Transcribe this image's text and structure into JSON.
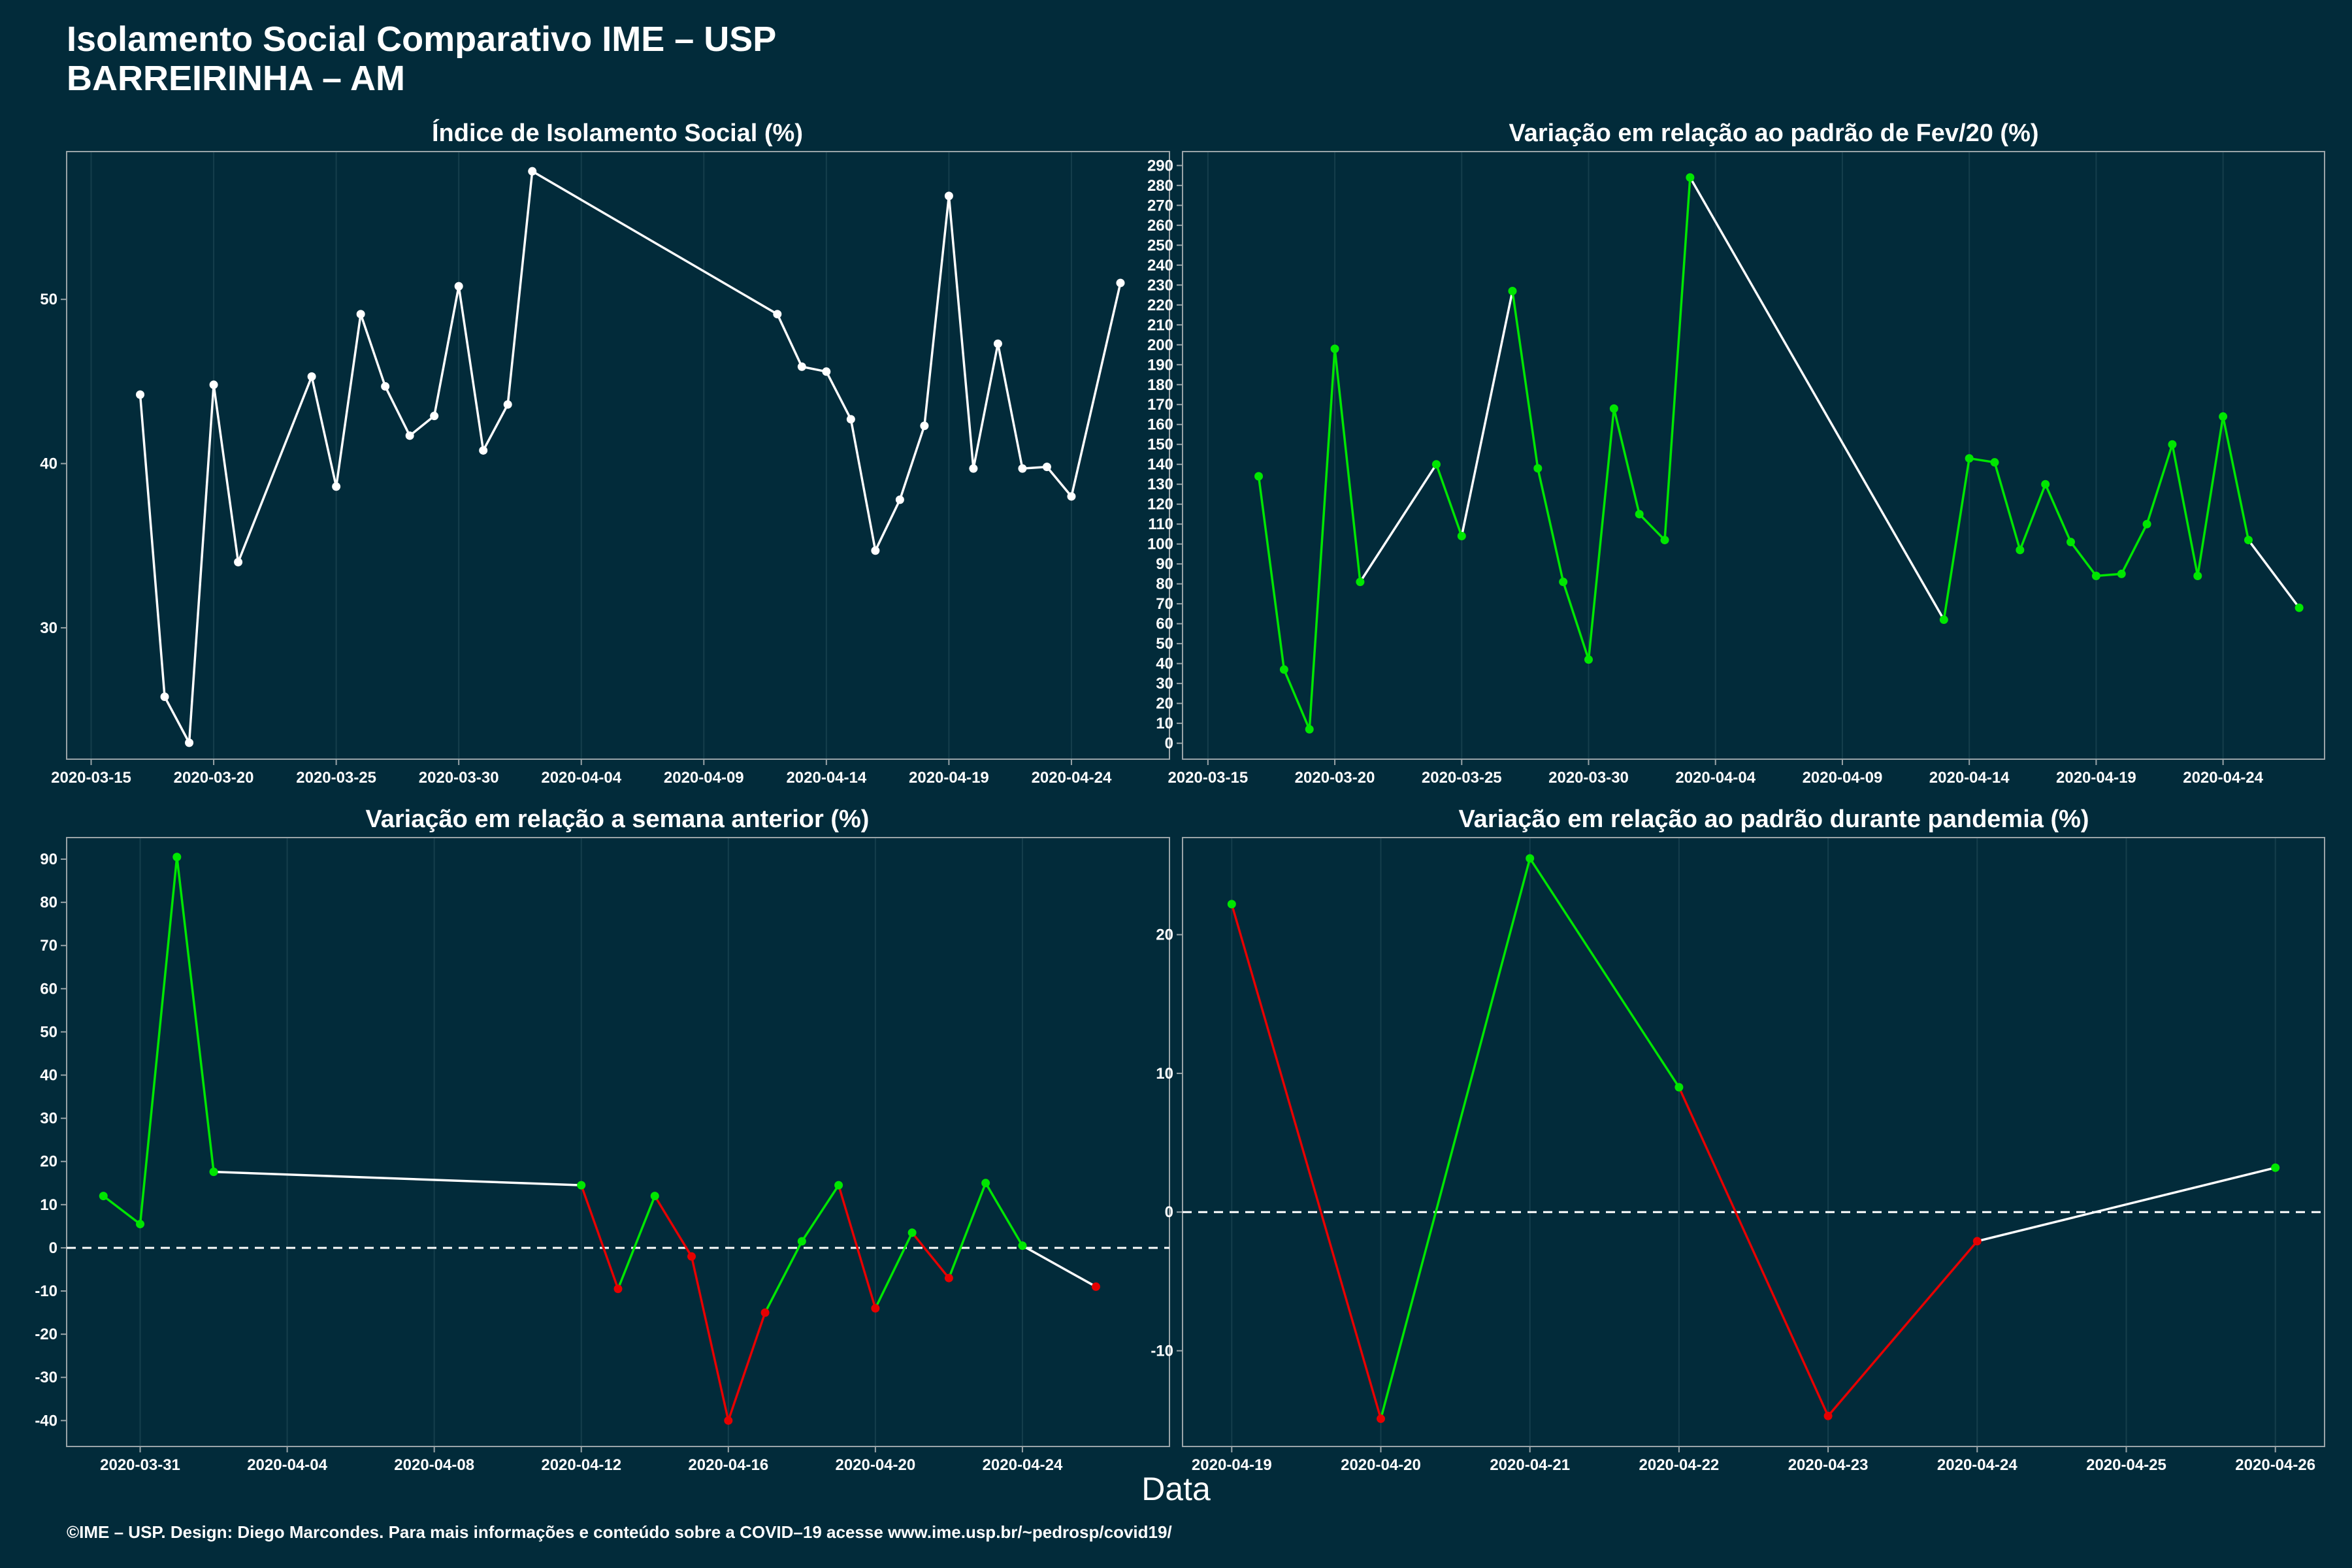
{
  "page": {
    "title_line1": "Isolamento Social Comparativo IME – USP",
    "title_line2": "BARREIRINHA – AM",
    "xlabel": "Data",
    "footer": "©IME – USP. Design: Diego Marcondes. Para mais informações e conteúdo sobre a COVID–19 acesse www.ime.usp.br/~pedrosp/covid19/"
  },
  "colors": {
    "background": "#022b3a",
    "white": "#ffffff",
    "green": "#00e600",
    "red": "#e60000",
    "panel_border": "#9aa4a8",
    "grid": "#153e4c"
  },
  "chart_data": [
    {
      "id": "isolamento",
      "type": "line",
      "title": "Índice de Isolamento Social (%)",
      "xlabel": "",
      "ylabel": "",
      "xlim": [
        "2020-03-14",
        "2020-04-28"
      ],
      "ylim": [
        22,
        59
      ],
      "x_ticks": [
        "2020-03-15",
        "2020-03-20",
        "2020-03-25",
        "2020-03-30",
        "2020-04-04",
        "2020-04-09",
        "2020-04-14",
        "2020-04-19",
        "2020-04-24"
      ],
      "y_ticks": [
        30,
        40,
        50
      ],
      "points": [
        {
          "x": "2020-03-17",
          "y": 44.2,
          "color": "white"
        },
        {
          "x": "2020-03-18",
          "y": 25.8,
          "color": "white"
        },
        {
          "x": "2020-03-19",
          "y": 23.0,
          "color": "white"
        },
        {
          "x": "2020-03-20",
          "y": 44.8,
          "color": "white"
        },
        {
          "x": "2020-03-21",
          "y": 34.0,
          "color": "white"
        },
        {
          "x": "2020-03-24",
          "y": 45.3,
          "color": "white"
        },
        {
          "x": "2020-03-25",
          "y": 38.6,
          "color": "white"
        },
        {
          "x": "2020-03-26",
          "y": 49.1,
          "color": "white"
        },
        {
          "x": "2020-03-27",
          "y": 44.7,
          "color": "white"
        },
        {
          "x": "2020-03-28",
          "y": 41.7,
          "color": "white"
        },
        {
          "x": "2020-03-29",
          "y": 42.9,
          "color": "white"
        },
        {
          "x": "2020-03-30",
          "y": 50.8,
          "color": "white"
        },
        {
          "x": "2020-03-31",
          "y": 40.8,
          "color": "white"
        },
        {
          "x": "2020-04-01",
          "y": 43.6,
          "color": "white"
        },
        {
          "x": "2020-04-02",
          "y": 57.8,
          "color": "white"
        },
        {
          "x": "2020-04-12",
          "y": 49.1,
          "color": "white"
        },
        {
          "x": "2020-04-13",
          "y": 45.9,
          "color": "white"
        },
        {
          "x": "2020-04-14",
          "y": 45.6,
          "color": "white"
        },
        {
          "x": "2020-04-15",
          "y": 42.7,
          "color": "white"
        },
        {
          "x": "2020-04-16",
          "y": 34.7,
          "color": "white"
        },
        {
          "x": "2020-04-17",
          "y": 37.8,
          "color": "white"
        },
        {
          "x": "2020-04-18",
          "y": 42.3,
          "color": "white"
        },
        {
          "x": "2020-04-19",
          "y": 56.3,
          "color": "white"
        },
        {
          "x": "2020-04-20",
          "y": 39.7,
          "color": "white"
        },
        {
          "x": "2020-04-21",
          "y": 47.3,
          "color": "white"
        },
        {
          "x": "2020-04-22",
          "y": 39.7,
          "color": "white"
        },
        {
          "x": "2020-04-23",
          "y": 39.8,
          "color": "white"
        },
        {
          "x": "2020-04-24",
          "y": 38.0,
          "color": "white"
        },
        {
          "x": "2020-04-26",
          "y": 51.0,
          "color": "white"
        }
      ]
    },
    {
      "id": "fev20",
      "type": "line",
      "title": "Variação em relação ao padrão de Fev/20 (%)",
      "xlabel": "",
      "ylabel": "",
      "xlim": [
        "2020-03-14",
        "2020-04-28"
      ],
      "ylim": [
        -8,
        297
      ],
      "x_ticks": [
        "2020-03-15",
        "2020-03-20",
        "2020-03-25",
        "2020-03-30",
        "2020-04-04",
        "2020-04-09",
        "2020-04-14",
        "2020-04-19",
        "2020-04-24"
      ],
      "y_ticks": [
        0,
        10,
        20,
        30,
        40,
        50,
        60,
        70,
        80,
        90,
        100,
        110,
        120,
        130,
        140,
        150,
        160,
        170,
        180,
        190,
        200,
        210,
        220,
        230,
        240,
        250,
        260,
        270,
        280,
        290
      ],
      "points": [
        {
          "x": "2020-03-17",
          "y": 134,
          "color": "green"
        },
        {
          "x": "2020-03-18",
          "y": 37,
          "color": "green"
        },
        {
          "x": "2020-03-19",
          "y": 7,
          "color": "green"
        },
        {
          "x": "2020-03-20",
          "y": 198,
          "color": "green"
        },
        {
          "x": "2020-03-21",
          "y": 81,
          "color": "green"
        },
        {
          "x": "2020-03-24",
          "y": 140,
          "color": "green"
        },
        {
          "x": "2020-03-25",
          "y": 104,
          "color": "green"
        },
        {
          "x": "2020-03-27",
          "y": 227,
          "color": "green"
        },
        {
          "x": "2020-03-28",
          "y": 138,
          "color": "green"
        },
        {
          "x": "2020-03-29",
          "y": 81,
          "color": "green"
        },
        {
          "x": "2020-03-30",
          "y": 42,
          "color": "green"
        },
        {
          "x": "2020-03-31",
          "y": 168,
          "color": "green"
        },
        {
          "x": "2020-04-01",
          "y": 115,
          "color": "green"
        },
        {
          "x": "2020-04-02",
          "y": 102,
          "color": "green"
        },
        {
          "x": "2020-04-03",
          "y": 284,
          "color": "green"
        },
        {
          "x": "2020-04-13",
          "y": 62,
          "color": "green"
        },
        {
          "x": "2020-04-14",
          "y": 143,
          "color": "green"
        },
        {
          "x": "2020-04-15",
          "y": 141,
          "color": "green"
        },
        {
          "x": "2020-04-16",
          "y": 97,
          "color": "green"
        },
        {
          "x": "2020-04-17",
          "y": 130,
          "color": "green"
        },
        {
          "x": "2020-04-18",
          "y": 101,
          "color": "green"
        },
        {
          "x": "2020-04-19",
          "y": 84,
          "color": "green"
        },
        {
          "x": "2020-04-20",
          "y": 85,
          "color": "green"
        },
        {
          "x": "2020-04-21",
          "y": 110,
          "color": "green"
        },
        {
          "x": "2020-04-22",
          "y": 150,
          "color": "green"
        },
        {
          "x": "2020-04-23",
          "y": 84,
          "color": "green"
        },
        {
          "x": "2020-04-24",
          "y": 164,
          "color": "green"
        },
        {
          "x": "2020-04-25",
          "y": 102,
          "color": "green"
        },
        {
          "x": "2020-04-27",
          "y": 68,
          "color": "green"
        }
      ]
    },
    {
      "id": "semana",
      "type": "line",
      "title": "Variação em relação a semana anterior (%)",
      "xlabel": "",
      "ylabel": "",
      "xlim": [
        "2020-03-29",
        "2020-04-28"
      ],
      "ylim": [
        -46,
        95
      ],
      "x_ticks": [
        "2020-03-31",
        "2020-04-04",
        "2020-04-08",
        "2020-04-12",
        "2020-04-16",
        "2020-04-20",
        "2020-04-24"
      ],
      "y_ticks": [
        -40,
        -30,
        -20,
        -10,
        0,
        10,
        20,
        30,
        40,
        50,
        60,
        70,
        80,
        90
      ],
      "zero_line": true,
      "points": [
        {
          "x": "2020-03-30",
          "y": 12,
          "color": "green"
        },
        {
          "x": "2020-03-31",
          "y": 5.5,
          "color": "green"
        },
        {
          "x": "2020-04-01",
          "y": 90.5,
          "color": "green"
        },
        {
          "x": "2020-04-02",
          "y": 17.6,
          "color": "green"
        },
        {
          "x": "2020-04-12",
          "y": 14.5,
          "color": "green"
        },
        {
          "x": "2020-04-13",
          "y": -9.5,
          "color": "red"
        },
        {
          "x": "2020-04-14",
          "y": 12,
          "color": "green"
        },
        {
          "x": "2020-04-15",
          "y": -2,
          "color": "red"
        },
        {
          "x": "2020-04-16",
          "y": -40,
          "color": "red"
        },
        {
          "x": "2020-04-17",
          "y": -15,
          "color": "red"
        },
        {
          "x": "2020-04-18",
          "y": 1.5,
          "color": "green"
        },
        {
          "x": "2020-04-19",
          "y": 14.5,
          "color": "green"
        },
        {
          "x": "2020-04-20",
          "y": -14,
          "color": "red"
        },
        {
          "x": "2020-04-21",
          "y": 3.5,
          "color": "green"
        },
        {
          "x": "2020-04-22",
          "y": -7,
          "color": "red"
        },
        {
          "x": "2020-04-23",
          "y": 15,
          "color": "green"
        },
        {
          "x": "2020-04-24",
          "y": 0.5,
          "color": "green"
        },
        {
          "x": "2020-04-26",
          "y": -9,
          "color": "red"
        }
      ]
    },
    {
      "id": "pandemia",
      "type": "line",
      "title": "Variação em relação ao padrão durante pandemia (%)",
      "xlabel": "",
      "ylabel": "",
      "xlim": [
        "2020-04-18.67",
        "2020-04-26.33"
      ],
      "ylim": [
        -16.9,
        27
      ],
      "x_ticks": [
        "2020-04-19",
        "2020-04-20",
        "2020-04-21",
        "2020-04-22",
        "2020-04-23",
        "2020-04-24",
        "2020-04-25",
        "2020-04-26"
      ],
      "y_ticks": [
        -10,
        0,
        10,
        20
      ],
      "zero_line": true,
      "points": [
        {
          "x": "2020-04-19",
          "y": 22.2,
          "color": "green"
        },
        {
          "x": "2020-04-20",
          "y": -14.9,
          "color": "red"
        },
        {
          "x": "2020-04-21",
          "y": 25.5,
          "color": "green"
        },
        {
          "x": "2020-04-22",
          "y": 9.0,
          "color": "green"
        },
        {
          "x": "2020-04-23",
          "y": -14.7,
          "color": "red"
        },
        {
          "x": "2020-04-24",
          "y": -2.1,
          "color": "red"
        },
        {
          "x": "2020-04-26",
          "y": 3.2,
          "color": "green"
        }
      ]
    }
  ]
}
